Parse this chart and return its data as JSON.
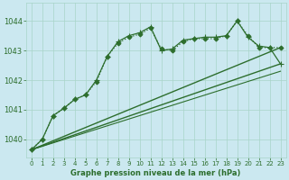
{
  "title": "Graphe pression niveau de la mer (hPa)",
  "bg_color": "#cbe8f0",
  "grid_color": "#a8d4c8",
  "line_color": "#2d6e2d",
  "xlim": [
    -0.5,
    23.5
  ],
  "ylim": [
    1039.4,
    1044.6
  ],
  "yticks": [
    1040,
    1041,
    1042,
    1043,
    1044
  ],
  "xticks": [
    0,
    1,
    2,
    3,
    4,
    5,
    6,
    7,
    8,
    9,
    10,
    11,
    12,
    13,
    14,
    15,
    16,
    17,
    18,
    19,
    20,
    21,
    22,
    23
  ],
  "series": [
    {
      "x": [
        0,
        1,
        2,
        3,
        4,
        5,
        6,
        7,
        8,
        9,
        10,
        11,
        12,
        13,
        14,
        15,
        16,
        17,
        18,
        19,
        20,
        21,
        22,
        23
      ],
      "y": [
        1039.65,
        1040.0,
        1040.8,
        1041.05,
        1041.35,
        1041.5,
        1041.95,
        1042.8,
        1043.25,
        1043.45,
        1043.55,
        1043.75,
        1043.05,
        1043.0,
        1043.3,
        1043.4,
        1043.4,
        1043.4,
        1043.5,
        1044.0,
        1043.5,
        1043.1,
        1043.1,
        1043.1
      ],
      "marker": "D",
      "markersize": 2.5,
      "linewidth": 0.9,
      "linestyle": ":"
    },
    {
      "x": [
        0,
        1,
        2,
        3,
        4,
        5,
        6,
        7,
        8,
        9,
        10,
        11,
        12,
        13,
        14,
        15,
        16,
        17,
        18,
        19,
        20,
        21,
        22,
        23
      ],
      "y": [
        1039.65,
        1040.0,
        1040.8,
        1041.05,
        1041.35,
        1041.5,
        1042.0,
        1042.8,
        1043.3,
        1043.5,
        1043.6,
        1043.8,
        1043.0,
        1043.05,
        1043.35,
        1043.4,
        1043.45,
        1043.45,
        1043.5,
        1044.0,
        1043.45,
        1043.15,
        1043.1,
        1042.55
      ],
      "marker": "+",
      "markersize": 4,
      "linewidth": 0.9,
      "linestyle": "-"
    },
    {
      "x": [
        0,
        23
      ],
      "y": [
        1039.65,
        1043.1
      ],
      "marker": null,
      "markersize": 0,
      "linewidth": 1.0,
      "linestyle": "-"
    },
    {
      "x": [
        0,
        23
      ],
      "y": [
        1039.65,
        1042.55
      ],
      "marker": null,
      "markersize": 0,
      "linewidth": 1.0,
      "linestyle": "-"
    },
    {
      "x": [
        0,
        23
      ],
      "y": [
        1039.65,
        1042.3
      ],
      "marker": null,
      "markersize": 0,
      "linewidth": 0.8,
      "linestyle": "-"
    }
  ]
}
